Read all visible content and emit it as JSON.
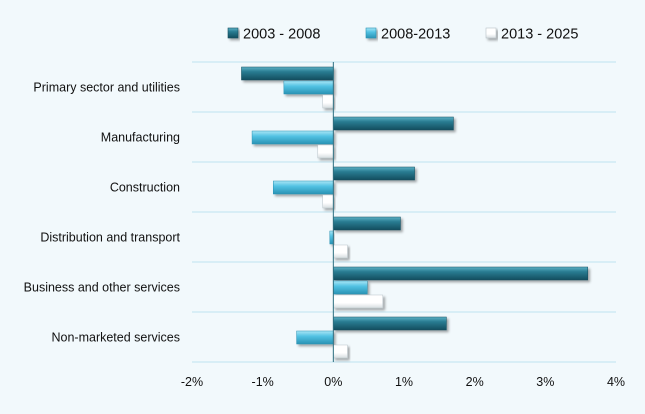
{
  "chart_data": {
    "type": "bar",
    "orientation": "horizontal",
    "categories": [
      "Primary sector and utilities",
      "Manufacturing",
      "Construction",
      "Distribution and transport",
      "Business and other services",
      "Non-marketed services"
    ],
    "series": [
      {
        "name": "2003 - 2008",
        "color": "#2a7d93",
        "values": [
          -1.3,
          1.7,
          1.15,
          0.95,
          3.6,
          1.6
        ]
      },
      {
        "name": "2008-2013",
        "color": "#52c2e3",
        "values": [
          -0.7,
          -1.15,
          -0.85,
          -0.05,
          0.48,
          -0.52
        ]
      },
      {
        "name": "2013 - 2025",
        "color": "#ffffff",
        "values": [
          -0.15,
          -0.22,
          -0.15,
          0.2,
          0.7,
          0.2
        ]
      }
    ],
    "xlim": [
      -2,
      4
    ],
    "xticks": [
      -2,
      -1,
      0,
      1,
      2,
      3,
      4
    ],
    "xtick_labels": [
      "-2%",
      "-1%",
      "0%",
      "1%",
      "2%",
      "3%",
      "4%"
    ],
    "grid": "horizontal category separators",
    "legend_position": "top"
  }
}
